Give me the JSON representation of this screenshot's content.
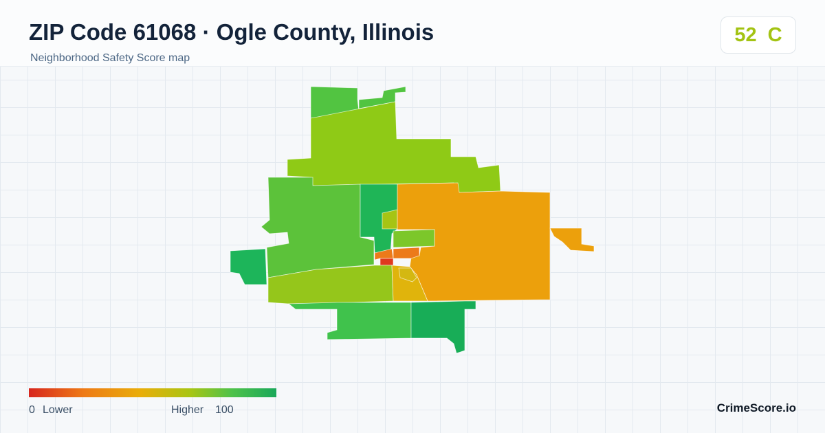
{
  "header": {
    "title": "ZIP Code 61068 · Ogle County, Illinois",
    "subtitle": "Neighborhood Safety Score map"
  },
  "score": {
    "value": 52,
    "grade": "C"
  },
  "legend": {
    "min": 0,
    "min_label": "Lower",
    "max_label": "Higher",
    "max": 100
  },
  "brand": "CrimeScore.io"
}
